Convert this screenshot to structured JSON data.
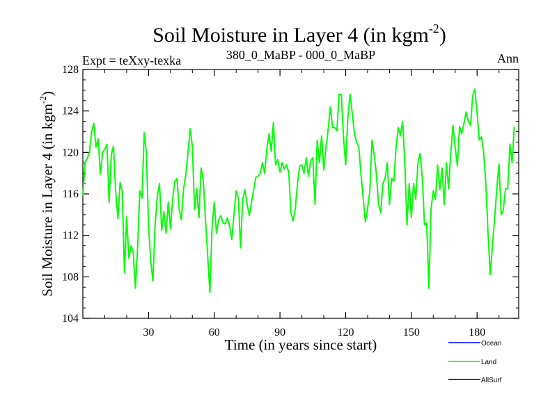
{
  "chart_data": {
    "type": "line",
    "title": "Soil Moisture in Layer 4 (in kgm",
    "title_sup": "-2",
    "title_close": ")",
    "subtitle_left": "Expt = teXxy-texka",
    "subtitle_center": "380_0_MaBP - 000_0_MaBP",
    "subtitle_right": "Ann",
    "xlabel": "Time (in years since start)",
    "ylabel": "Soil Moisture in Layer 4 (in kgm",
    "ylabel_sup": "-2",
    "ylabel_close": ")",
    "xlim": [
      0,
      199
    ],
    "ylim": [
      104,
      128
    ],
    "xticks": [
      30,
      60,
      90,
      120,
      150,
      180
    ],
    "yticks": [
      104,
      108,
      112,
      116,
      120,
      124,
      128
    ],
    "legend_position": "bottom-right",
    "series": [
      {
        "name": "Ocean",
        "color": "#0000ff",
        "values": []
      },
      {
        "name": "Land",
        "color": "#00ff00",
        "x_start": 0,
        "x_step": 1,
        "values": [
          115.8,
          119.0,
          119.4,
          120.0,
          122.0,
          122.8,
          120.5,
          121.3,
          117.9,
          120.0,
          120.3,
          120.8,
          115.2,
          119.8,
          120.6,
          116.2,
          113.6,
          117.1,
          116.2,
          108.4,
          113.8,
          109.8,
          111.0,
          110.4,
          106.9,
          110.8,
          116.3,
          115.6,
          121.9,
          120.0,
          113.0,
          109.5,
          107.6,
          113.0,
          115.8,
          117.0,
          112.5,
          114.3,
          112.2,
          115.2,
          112.6,
          115.5,
          117.2,
          117.5,
          114.5,
          113.5,
          116.5,
          117.8,
          120.0,
          122.3,
          120.6,
          114.5,
          116.5,
          113.7,
          118.5,
          117.3,
          113.5,
          110.0,
          106.5,
          112.8,
          115.2,
          112.2,
          113.5,
          113.9,
          113.2,
          113.1,
          113.7,
          112.9,
          111.6,
          114.0,
          116.3,
          115.6,
          110.8,
          115.5,
          116.4,
          115.0,
          113.9,
          115.2,
          116.4,
          117.6,
          117.7,
          118.0,
          119.0,
          118.0,
          120.3,
          121.8,
          120.1,
          122.9,
          118.8,
          119.3,
          118.1,
          119.0,
          118.4,
          118.8,
          118.1,
          114.2,
          113.4,
          114.6,
          117.0,
          118.7,
          118.8,
          118.0,
          119.5,
          117.7,
          119.2,
          119.5,
          115.0,
          121.2,
          119.0,
          121.6,
          118.3,
          120.5,
          122.2,
          124.4,
          122.4,
          122.4,
          122.1,
          125.6,
          125.6,
          121.5,
          118.8,
          123.4,
          125.6,
          123.8,
          121.8,
          121.0,
          120.5,
          117.9,
          115.6,
          113.3,
          114.6,
          116.2,
          121.2,
          119.8,
          118.0,
          115.0,
          114.2,
          117.0,
          117.5,
          119.0,
          115.0,
          117.5,
          117.2,
          120.5,
          122.4,
          121.6,
          123.0,
          119.0,
          113.0,
          117.0,
          113.7,
          117.0,
          115.5,
          119.0,
          119.9,
          117.5,
          113.0,
          113.2,
          106.9,
          114.6,
          116.3,
          115.5,
          118.8,
          116.4,
          118.5,
          115.0,
          119.0,
          116.5,
          120.0,
          122.6,
          120.5,
          118.7,
          122.5,
          121.8,
          122.8,
          123.9,
          123.0,
          122.6,
          125.5,
          126.1,
          123.8,
          121.2,
          121.5,
          120.0,
          117.0,
          112.2,
          108.2,
          111.0,
          113.6,
          116.5,
          118.9,
          114.0,
          114.5,
          116.5,
          116.5,
          120.8,
          119.0,
          122.5
        ]
      },
      {
        "name": "AllSurf",
        "color": "#000000",
        "values": []
      }
    ]
  }
}
